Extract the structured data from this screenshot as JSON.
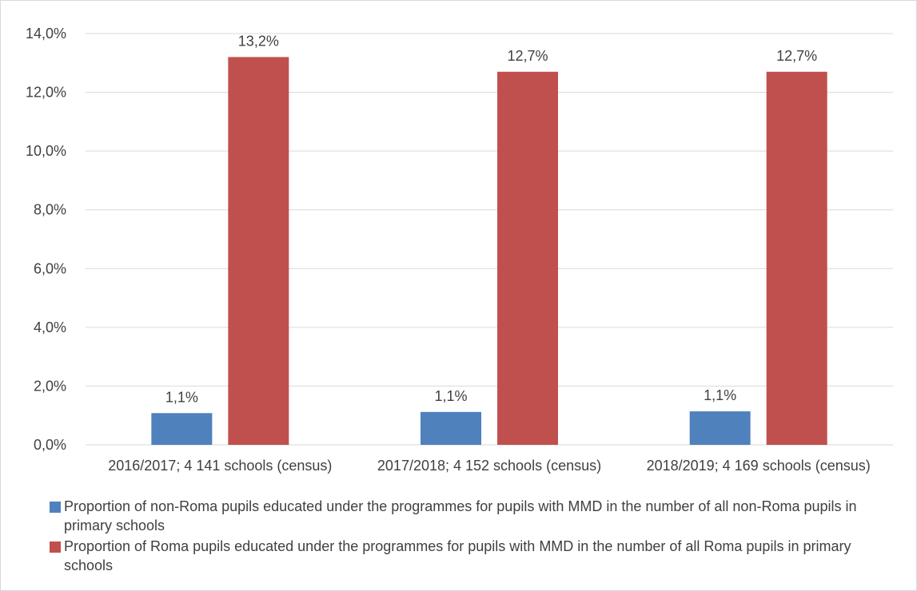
{
  "chart_data": {
    "type": "bar",
    "categories": [
      "2016/2017; 4 141 schools (census)",
      "2017/2018; 4 152 schools (census)",
      "2018/2019; 4 169 schools (census)"
    ],
    "series": [
      {
        "name": "Proportion of non-Roma pupils educated under the programmes for pupils with MMD in the number of all non-Roma pupils in primary schools",
        "values": [
          1.08,
          1.12,
          1.14
        ],
        "labels": [
          "1,1%",
          "1,1%",
          "1,1%"
        ],
        "color": "#4f81bd"
      },
      {
        "name": "Proportion of Roma pupils educated under the programmes for pupils with MMD in the number of all Roma pupils in primary schools",
        "values": [
          13.2,
          12.7,
          12.7
        ],
        "labels": [
          "13,2%",
          "12,7%",
          "12,7%"
        ],
        "color": "#c0504d"
      }
    ],
    "ylim": [
      0,
      14
    ],
    "yticks": [
      "0,0%",
      "2,0%",
      "4,0%",
      "6,0%",
      "8,0%",
      "10,0%",
      "12,0%",
      "14,0%"
    ],
    "grid": true,
    "legend_position": "bottom",
    "title": "",
    "xlabel": "",
    "ylabel": ""
  }
}
